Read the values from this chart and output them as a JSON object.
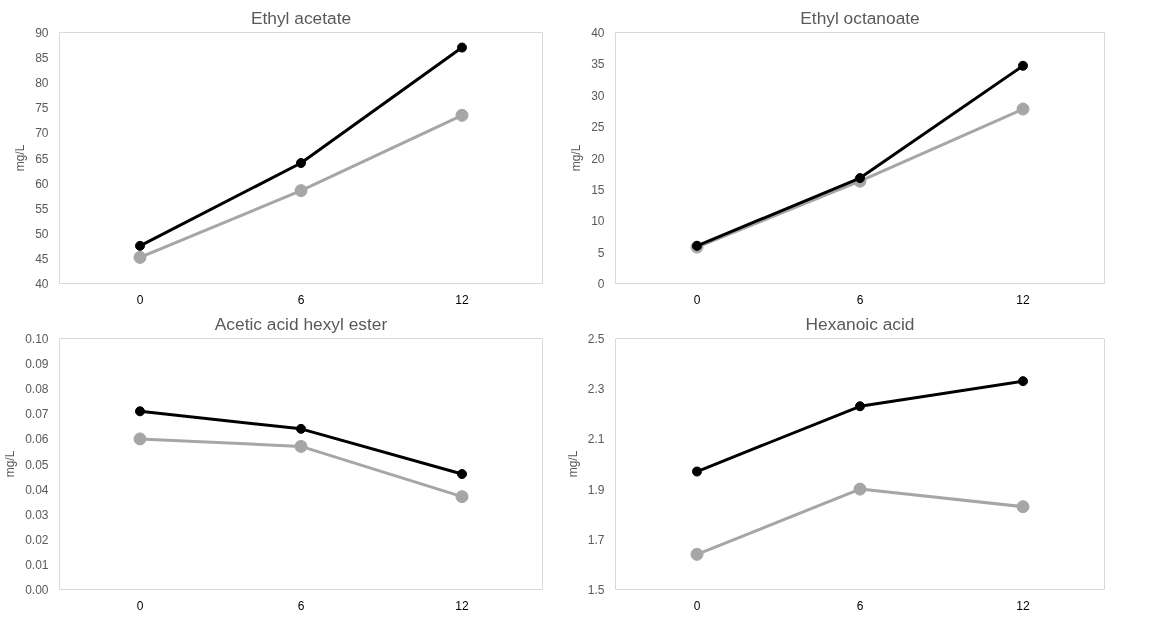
{
  "chart_data": [
    {
      "type": "line",
      "title": "Ethyl acetate",
      "ylabel": "mg/L",
      "categories": [
        "0",
        "6",
        "12"
      ],
      "ylim": [
        40,
        90
      ],
      "yticks": [
        40,
        45,
        50,
        55,
        60,
        65,
        70,
        75,
        80,
        85,
        90
      ],
      "grid": false,
      "marker": "circle",
      "line_style": "solid",
      "series": [
        {
          "color": "#a6a6a6",
          "values": [
            45.2,
            58.5,
            73.5
          ]
        },
        {
          "color": "#000000",
          "values": [
            47.5,
            64,
            87
          ]
        }
      ]
    },
    {
      "type": "line",
      "title": "Ethyl octanoate",
      "ylabel": "mg/L",
      "categories": [
        "0",
        "6",
        "12"
      ],
      "ylim": [
        0,
        40
      ],
      "yticks": [
        0,
        5,
        10,
        15,
        20,
        25,
        30,
        35,
        40
      ],
      "grid": false,
      "marker": "circle",
      "line_style": "solid",
      "series": [
        {
          "color": "#a6a6a6",
          "values": [
            5.8,
            16.3,
            27.8
          ]
        },
        {
          "color": "#000000",
          "values": [
            6,
            16.8,
            34.7
          ]
        }
      ]
    },
    {
      "type": "line",
      "title": "Acetic acid hexyl ester",
      "ylabel": "mg/L",
      "categories": [
        "0",
        "6",
        "12"
      ],
      "ylim": [
        0,
        0.1
      ],
      "yticks": [
        {
          "value": 0,
          "label": "0.00"
        },
        {
          "value": 0.01,
          "label": "0.01"
        },
        {
          "value": 0.02,
          "label": "0.02"
        },
        {
          "value": 0.03,
          "label": "0.03"
        },
        {
          "value": 0.04,
          "label": "0.04"
        },
        {
          "value": 0.05,
          "label": "0.05"
        },
        {
          "value": 0.06,
          "label": "0.06"
        },
        {
          "value": 0.07,
          "label": "0.07"
        },
        {
          "value": 0.08,
          "label": "0.08"
        },
        {
          "value": 0.09,
          "label": "0.09"
        },
        {
          "value": 0.1,
          "label": "0.10"
        }
      ],
      "grid": false,
      "marker": "circle",
      "line_style": "solid",
      "series": [
        {
          "color": "#a6a6a6",
          "values": [
            0.06,
            0.057,
            0.037
          ]
        },
        {
          "color": "#000000",
          "values": [
            0.071,
            0.064,
            0.046
          ]
        }
      ]
    },
    {
      "type": "line",
      "title": "Hexanoic acid",
      "ylabel": "mg/L",
      "categories": [
        "0",
        "6",
        "12"
      ],
      "ylim": [
        1.5,
        2.5
      ],
      "yticks": [
        1.5,
        1.7,
        1.9,
        2.1,
        2.3,
        2.5
      ],
      "grid": false,
      "marker": "circle",
      "line_style": "solid",
      "series": [
        {
          "color": "#a6a6a6",
          "values": [
            1.64,
            1.9,
            1.83
          ]
        },
        {
          "color": "#000000",
          "values": [
            1.97,
            2.23,
            2.33
          ]
        }
      ]
    }
  ]
}
